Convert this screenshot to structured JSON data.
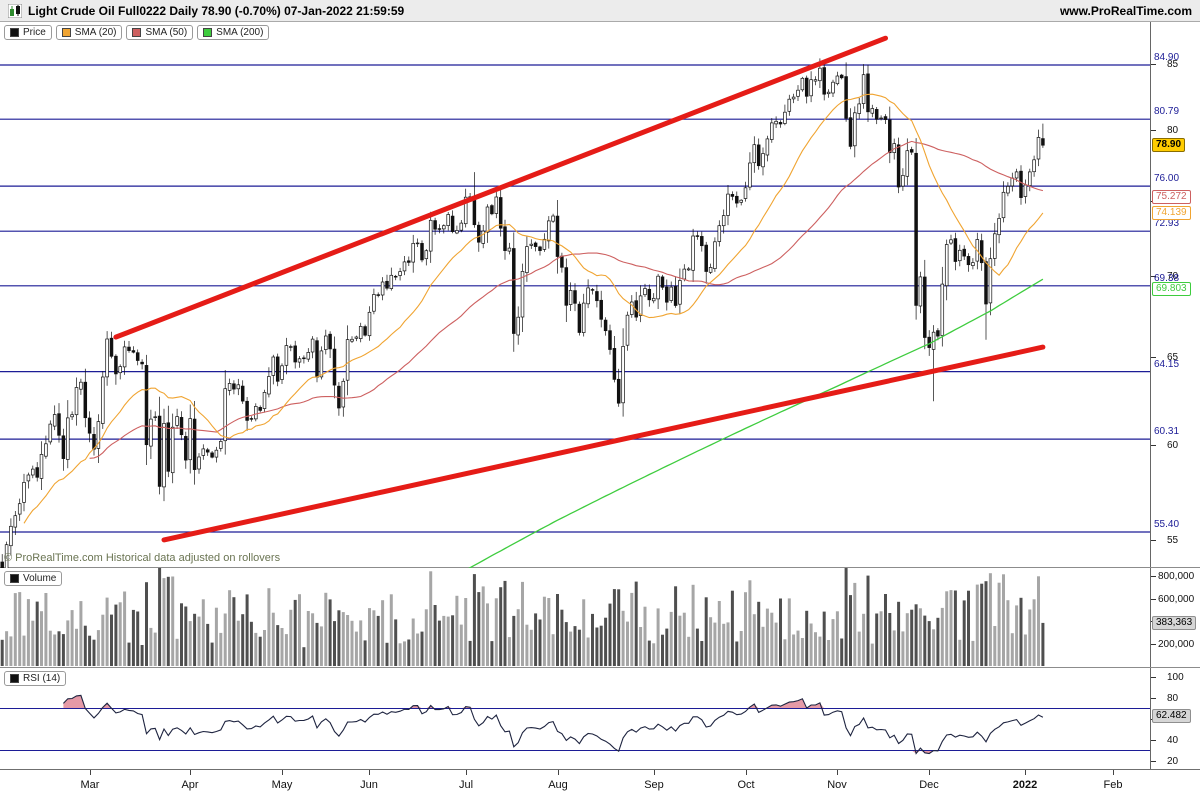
{
  "header": {
    "title": "Light Crude Oil Full0222 Daily 78.90 (-0.70%) 07-Jan-2022 21:59:59",
    "site": "www.ProRealTime.com"
  },
  "legend": {
    "price_label": "Price",
    "sma20_label": "SMA (20)",
    "sma50_label": "SMA (50)",
    "sma200_label": "SMA (200)"
  },
  "volume_label": "Volume",
  "rsi_label": "RSI (14)",
  "copyright": "© ProRealTime.com  Historical data adjusted on rollovers",
  "colors": {
    "level_line": "#1c1c96",
    "level_text": "#1c1c96",
    "trendline": "#e51c17",
    "sma20": "#f0a431",
    "sma50": "#cd6060",
    "sma200": "#3ecc3e",
    "candle_up": "#ffffff",
    "candle_down": "#111111",
    "candle_stroke": "#111111",
    "volume_up": "#a6a6a6",
    "volume_down": "#4f4f4f",
    "rsi_line": "#1e2440",
    "rsi_fill": "#e59aa7",
    "last_price_bg": "#ffcc00",
    "value_box_bg": "#d6d6d6",
    "copyright_text": "#6a7452"
  },
  "chart_data": {
    "type": "candlestick",
    "title": "Light Crude Oil Full0222 Daily",
    "last_price": "78.90",
    "change": "-0.70%",
    "timestamp": "07-Jan-2022 21:59:59",
    "price_axis": {
      "scale": "log",
      "ticks": [
        85,
        80,
        75,
        70,
        65,
        60,
        55
      ],
      "tick_labels": [
        "85",
        "80",
        "75",
        "70",
        "65",
        "60",
        "55"
      ]
    },
    "levels": [
      84.9,
      80.79,
      76.0,
      72.93,
      69.38,
      64.15,
      60.31,
      55.4
    ],
    "level_labels": [
      "84.90",
      "80.79",
      "76.00",
      "72.93",
      "69.38",
      "64.15",
      "60.31",
      "55.40"
    ],
    "indicator_labels": {
      "last": "78.90",
      "sma50": "75.272",
      "sma20": "74.139",
      "sma200": "69.803"
    },
    "closes": [
      53.55,
      54.76,
      55.69,
      56.23,
      56.85,
      57.97,
      58.36,
      58.68,
      58.24,
      59.47,
      60.05,
      61.14,
      61.68,
      60.52,
      59.24,
      61.49,
      61.67,
      63.22,
      63.53,
      61.5,
      60.64,
      59.75,
      61.28,
      63.83,
      66.09,
      65.05,
      64.01,
      64.44,
      65.61,
      65.39,
      65.29,
      64.8,
      64.6,
      60.0,
      61.42,
      61.55,
      57.76,
      61.18,
      58.56,
      60.97,
      61.56,
      60.55,
      59.16,
      61.45,
      58.65,
      59.33,
      59.77,
      59.6,
      59.32,
      59.7,
      60.18,
      63.15,
      63.46,
      63.13,
      63.38,
      62.44,
      61.35,
      61.43,
      62.14,
      61.91,
      62.94,
      63.86,
      65.01,
      63.58,
      64.49,
      65.69,
      65.63,
      64.71,
      64.9,
      64.92,
      65.28,
      66.08,
      63.82,
      65.37,
      66.27,
      65.49,
      63.36,
      62.05,
      63.58,
      66.05,
      66.07,
      66.21,
      66.85,
      66.32,
      67.72,
      68.83,
      68.81,
      69.62,
      69.23,
      70.05,
      69.96,
      70.29,
      70.91,
      70.88,
      72.12,
      72.15,
      71.04,
      71.64,
      73.66,
      73.06,
      73.08,
      73.3,
      74.05,
      72.91,
      72.98,
      73.47,
      75.23,
      75.16,
      73.37,
      72.2,
      72.94,
      74.56,
      74.1,
      75.25,
      73.13,
      71.65,
      71.81,
      66.42,
      67.42,
      70.3,
      71.91,
      72.07,
      71.91,
      71.65,
      72.39,
      73.62,
      73.95,
      71.26,
      70.56,
      68.15,
      69.09,
      68.28,
      66.48,
      68.29,
      69.25,
      69.09,
      68.44,
      67.29,
      66.59,
      65.46,
      63.69,
      62.32,
      65.64,
      67.54,
      68.36,
      67.42,
      68.74,
      69.21,
      68.5,
      68.59,
      69.99,
      69.29,
      68.35,
      69.3,
      68.14,
      69.72,
      70.45,
      70.46,
      72.61,
      72.61,
      71.97,
      70.29,
      70.56,
      72.23,
      73.3,
      73.98,
      75.45,
      75.29,
      74.83,
      75.03,
      75.88,
      77.62,
      78.93,
      77.43,
      78.3,
      79.35,
      80.52,
      80.64,
      80.44,
      81.31,
      82.28,
      82.44,
      82.96,
      83.87,
      82.5,
      83.76,
      83.76,
      84.65,
      82.66,
      82.81,
      83.57,
      84.05,
      83.91,
      80.86,
      78.81,
      81.27,
      81.93,
      84.15,
      81.34,
      81.59,
      80.79,
      80.88,
      80.76,
      78.36,
      79.01,
      75.94,
      76.75,
      78.5,
      78.39,
      68.15,
      69.95,
      66.18,
      65.57,
      66.5,
      66.26,
      69.49,
      72.05,
      72.36,
      70.94,
      71.67,
      71.29,
      70.73,
      70.87,
      72.38,
      70.86,
      68.23,
      71.12,
      72.76,
      73.79,
      75.57,
      75.98,
      76.56,
      76.99,
      75.21,
      76.08,
      76.99,
      77.85,
      79.46,
      78.9
    ],
    "wick_overrides": {
      "highs": {
        "108": 76.98,
        "187": 85.41,
        "197": 84.97,
        "238": 80.47
      },
      "lows": {
        "213": 62.43,
        "225": 66.04
      }
    },
    "months": [
      {
        "label": "Mar",
        "index": 20
      },
      {
        "label": "Apr",
        "index": 43
      },
      {
        "label": "May",
        "index": 64
      },
      {
        "label": "Jun",
        "index": 84
      },
      {
        "label": "Jul",
        "index": 106
      },
      {
        "label": "Aug",
        "index": 127
      },
      {
        "label": "Sep",
        "index": 149
      },
      {
        "label": "Oct",
        "index": 170
      },
      {
        "label": "Nov",
        "index": 191
      },
      {
        "label": "Dec",
        "index": 212
      },
      {
        "label": "2022",
        "index": 234,
        "bold": true
      },
      {
        "label": "Feb",
        "index": 254
      }
    ],
    "trendlines": [
      {
        "i1": 26,
        "p1": 66.2,
        "i2": 202,
        "p2": 87.0
      },
      {
        "i1": 37,
        "p1": 55.0,
        "i2": 238,
        "p2": 65.6
      }
    ],
    "sma200_points": [
      [
        60,
        49.5
      ],
      [
        84,
        51.3
      ],
      [
        106,
        53.5
      ],
      [
        127,
        56.0
      ],
      [
        149,
        58.5
      ],
      [
        170,
        60.9
      ],
      [
        191,
        63.3
      ],
      [
        212,
        65.8
      ],
      [
        226,
        67.8
      ],
      [
        238,
        69.8
      ]
    ],
    "volume_axis": {
      "tick_values": [
        800000,
        600000,
        400000,
        200000
      ],
      "tick_labels": [
        "800,000",
        "600,000",
        "400,000",
        "200,000"
      ],
      "last_label": "383,363",
      "last_value": 383363
    },
    "rsi": {
      "period": 14,
      "upper": 70,
      "lower": 30,
      "tick_values": [
        100,
        80,
        60,
        40,
        20
      ],
      "tick_labels": [
        "100",
        "80",
        "60",
        "40",
        "20"
      ],
      "last_label": "62.482"
    }
  }
}
